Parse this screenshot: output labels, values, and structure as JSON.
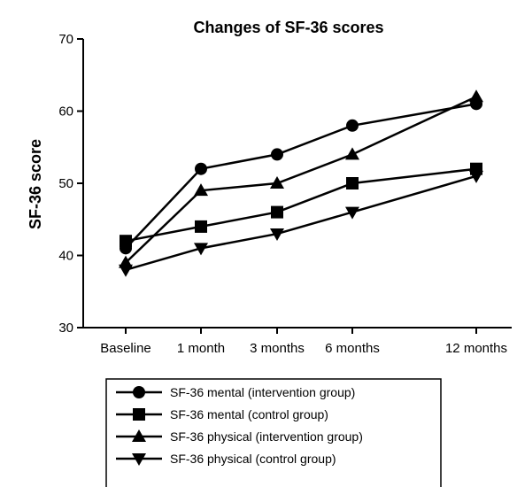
{
  "chart_data": {
    "type": "line",
    "title": "Changes of SF-36 scores",
    "xlabel": "",
    "ylabel": "SF-36 score",
    "categories": [
      "Baseline",
      "1 month",
      "3 months",
      "6 months",
      "12 months"
    ],
    "ylim": [
      30,
      70
    ],
    "yticks": [
      30,
      40,
      50,
      60,
      70
    ],
    "grid": false,
    "legend_position": "bottom",
    "series": [
      {
        "name": "SF-36 mental (intervention group)",
        "marker": "circle",
        "values": [
          41,
          52,
          54,
          58,
          61
        ]
      },
      {
        "name": "SF-36 mental (control group)",
        "marker": "square",
        "values": [
          42,
          44,
          46,
          50,
          52
        ]
      },
      {
        "name": "SF-36 physical (intervention group)",
        "marker": "triangle-up",
        "values": [
          39,
          49,
          50,
          54,
          62
        ]
      },
      {
        "name": "SF-36 physical (control group)",
        "marker": "triangle-down",
        "values": [
          38,
          41,
          43,
          46,
          51
        ]
      }
    ],
    "colors": {
      "line": "#000000",
      "background": "#ffffff"
    }
  }
}
